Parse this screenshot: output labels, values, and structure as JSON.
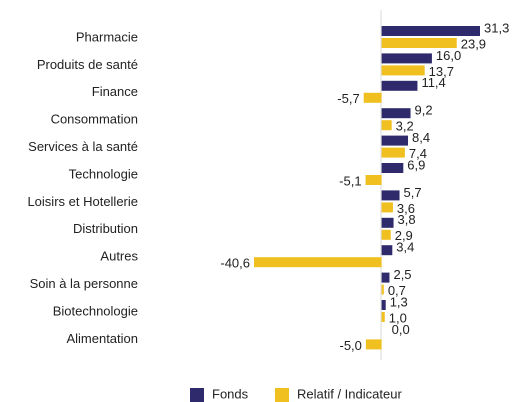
{
  "chart_data": {
    "type": "bar",
    "orientation": "horizontal",
    "categories": [
      "Pharmacie",
      "Produits de santé",
      "Finance",
      "Consommation",
      "Services à la santé",
      "Technologie",
      "Loisirs et Hotellerie",
      "Distribution",
      "Autres",
      "Soin à la personne",
      "Biotechnologie",
      "Alimentation"
    ],
    "series": [
      {
        "name": "Fonds",
        "color": "#2e2a6b",
        "values": [
          31.3,
          16.0,
          11.4,
          9.2,
          8.4,
          6.9,
          5.7,
          3.8,
          3.4,
          2.5,
          1.3,
          0.0
        ],
        "value_labels": [
          "31,3",
          "16,0",
          "11,4",
          "9,2",
          "8,4",
          "6,9",
          "5,7",
          "3,8",
          "3,4",
          "2,5",
          "1,3",
          "0,0"
        ]
      },
      {
        "name": "Relatif / Indicateur",
        "color": "#f0c020",
        "values": [
          23.9,
          13.7,
          -5.7,
          3.2,
          7.4,
          -5.1,
          3.6,
          2.9,
          -40.6,
          0.7,
          1.0,
          -5.0
        ],
        "value_labels": [
          "23,9",
          "13,7",
          "-5,7",
          "3,2",
          "7,4",
          "-5,1",
          "3,6",
          "2,9",
          "-40,6",
          "0,7",
          "1,0",
          "-5,0"
        ]
      }
    ],
    "legend": "bottom"
  }
}
